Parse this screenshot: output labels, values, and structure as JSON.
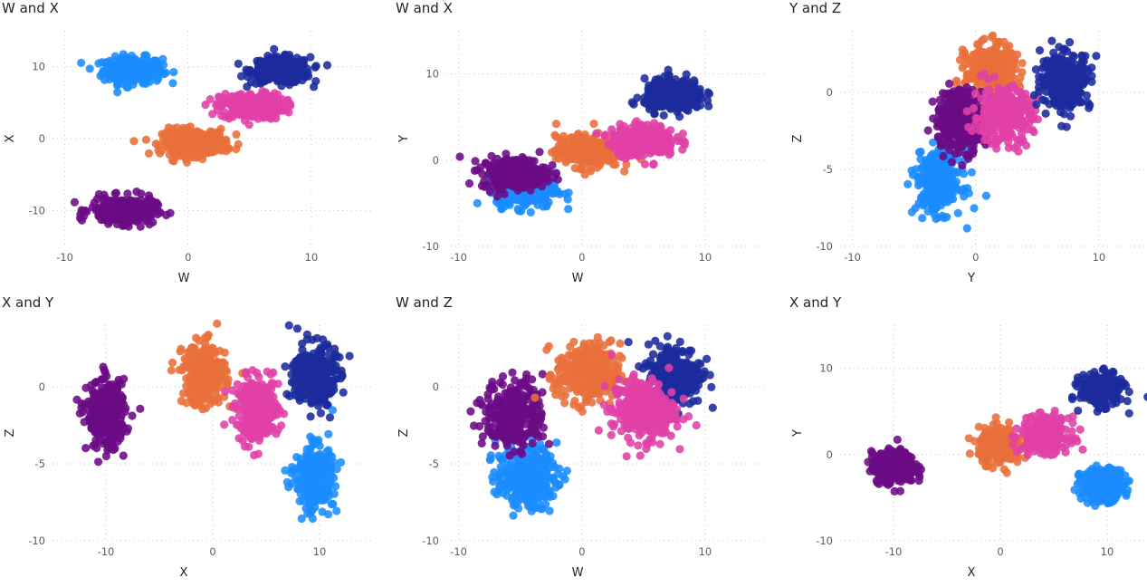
{
  "colors": {
    "A": "#1b2a9c",
    "B": "#1a8cff",
    "C": "#6b0a85",
    "D": "#e8703a",
    "E": "#e040a6"
  },
  "chart_data": [
    {
      "type": "scatter",
      "title": "W and X",
      "xlabel": "W",
      "ylabel": "X",
      "xlim": [
        -11,
        15
      ],
      "ylim": [
        -15,
        15
      ],
      "xticks": [
        -10,
        0,
        10
      ],
      "yticks": [
        -10,
        0,
        10
      ],
      "grid": true,
      "series": [
        {
          "color": "B",
          "cx": -4.5,
          "cy": 9.5,
          "sx": 1.2,
          "sy": 0.9,
          "n": 300
        },
        {
          "color": "A",
          "cx": 7.5,
          "cy": 9.5,
          "sx": 1.2,
          "sy": 0.9,
          "n": 300
        },
        {
          "color": "E",
          "cx": 5.2,
          "cy": 4.5,
          "sx": 1.3,
          "sy": 0.9,
          "n": 300
        },
        {
          "color": "D",
          "cx": 0.5,
          "cy": -0.5,
          "sx": 1.3,
          "sy": 0.9,
          "n": 300
        },
        {
          "color": "C",
          "cx": -5.3,
          "cy": -10,
          "sx": 1.3,
          "sy": 0.9,
          "n": 300
        }
      ]
    },
    {
      "type": "scatter",
      "title": "W and X",
      "xlabel": "W",
      "ylabel": "Y",
      "xlim": [
        -11,
        15
      ],
      "ylim": [
        -10,
        15
      ],
      "xticks": [
        -10,
        0,
        10
      ],
      "yticks": [
        -10,
        0,
        10
      ],
      "grid": true,
      "series": [
        {
          "color": "B",
          "cx": -4.5,
          "cy": -3.5,
          "sx": 1.2,
          "sy": 1.0,
          "n": 300
        },
        {
          "color": "C",
          "cx": -5.5,
          "cy": -1.5,
          "sx": 1.3,
          "sy": 0.9,
          "n": 300
        },
        {
          "color": "D",
          "cx": 0.5,
          "cy": 1.0,
          "sx": 1.3,
          "sy": 0.9,
          "n": 300
        },
        {
          "color": "E",
          "cx": 5.0,
          "cy": 2.3,
          "sx": 1.3,
          "sy": 0.9,
          "n": 300
        },
        {
          "color": "A",
          "cx": 7.5,
          "cy": 7.5,
          "sx": 1.2,
          "sy": 0.9,
          "n": 300
        }
      ]
    },
    {
      "type": "scatter",
      "title": "Y and Z",
      "xlabel": "Y",
      "ylabel": "Z",
      "xlim": [
        -11,
        15
      ],
      "ylim": [
        -10,
        4
      ],
      "xticks": [
        -10,
        0,
        10
      ],
      "yticks": [
        -10,
        -5,
        0
      ],
      "grid": true,
      "series": [
        {
          "color": "B",
          "cx": -3.0,
          "cy": -5.8,
          "sx": 0.9,
          "sy": 1.0,
          "n": 300
        },
        {
          "color": "D",
          "cx": 1.2,
          "cy": 1.5,
          "sx": 1.0,
          "sy": 0.8,
          "n": 300
        },
        {
          "color": "C",
          "cx": -1.3,
          "cy": -1.8,
          "sx": 1.0,
          "sy": 1.0,
          "n": 300
        },
        {
          "color": "E",
          "cx": 2.2,
          "cy": -1.5,
          "sx": 1.2,
          "sy": 0.9,
          "n": 300
        },
        {
          "color": "A",
          "cx": 7.3,
          "cy": 0.8,
          "sx": 1.0,
          "sy": 0.9,
          "n": 300
        }
      ]
    },
    {
      "type": "scatter",
      "title": "X and Y",
      "xlabel": "X",
      "ylabel": "Z",
      "xlim": [
        -15,
        15
      ],
      "ylim": [
        -10,
        4
      ],
      "xticks": [
        -10,
        0,
        10
      ],
      "yticks": [
        -10,
        -5,
        0
      ],
      "grid": true,
      "series": [
        {
          "color": "C",
          "cx": -10,
          "cy": -1.8,
          "sx": 0.9,
          "sy": 1.1,
          "n": 300
        },
        {
          "color": "D",
          "cx": -0.8,
          "cy": 0.8,
          "sx": 1.0,
          "sy": 1.0,
          "n": 300
        },
        {
          "color": "E",
          "cx": 4.2,
          "cy": -1.5,
          "sx": 1.0,
          "sy": 1.0,
          "n": 300
        },
        {
          "color": "A",
          "cx": 9.5,
          "cy": 0.8,
          "sx": 1.0,
          "sy": 1.0,
          "n": 300
        },
        {
          "color": "B",
          "cx": 9.5,
          "cy": -5.8,
          "sx": 0.9,
          "sy": 1.0,
          "n": 300
        }
      ]
    },
    {
      "type": "scatter",
      "title": "W and Z",
      "xlabel": "W",
      "ylabel": "Z",
      "xlim": [
        -11,
        15
      ],
      "ylim": [
        -10,
        4
      ],
      "xticks": [
        -10,
        0,
        10
      ],
      "yticks": [
        -10,
        -5,
        0
      ],
      "grid": true,
      "series": [
        {
          "color": "B",
          "cx": -4.5,
          "cy": -5.8,
          "sx": 1.2,
          "sy": 1.0,
          "n": 300
        },
        {
          "color": "C",
          "cx": -5.5,
          "cy": -1.8,
          "sx": 1.2,
          "sy": 1.1,
          "n": 300
        },
        {
          "color": "D",
          "cx": 0.5,
          "cy": 0.8,
          "sx": 1.3,
          "sy": 1.0,
          "n": 300
        },
        {
          "color": "A",
          "cx": 7.5,
          "cy": 0.8,
          "sx": 1.1,
          "sy": 1.0,
          "n": 300
        },
        {
          "color": "E",
          "cx": 5.0,
          "cy": -1.5,
          "sx": 1.3,
          "sy": 1.0,
          "n": 300
        }
      ]
    },
    {
      "type": "scatter",
      "title": "X and Y",
      "xlabel": "X",
      "ylabel": "Y",
      "xlim": [
        -15,
        15
      ],
      "ylim": [
        -10,
        15
      ],
      "xticks": [
        -10,
        0,
        10
      ],
      "yticks": [
        -10,
        0,
        10
      ],
      "grid": true,
      "series": [
        {
          "color": "C",
          "cx": -10,
          "cy": -1.5,
          "sx": 1.0,
          "sy": 0.9,
          "n": 300
        },
        {
          "color": "D",
          "cx": 0,
          "cy": 1.0,
          "sx": 1.0,
          "sy": 1.0,
          "n": 300
        },
        {
          "color": "E",
          "cx": 4.2,
          "cy": 2.3,
          "sx": 1.1,
          "sy": 1.0,
          "n": 300
        },
        {
          "color": "A",
          "cx": 9.5,
          "cy": 7.5,
          "sx": 1.0,
          "sy": 0.9,
          "n": 300
        },
        {
          "color": "B",
          "cx": 9.5,
          "cy": -3.5,
          "sx": 1.0,
          "sy": 0.9,
          "n": 300
        }
      ]
    }
  ]
}
